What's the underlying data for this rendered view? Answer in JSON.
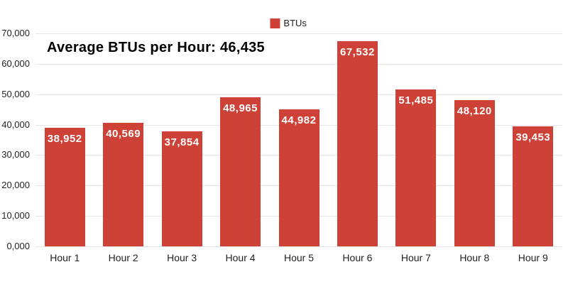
{
  "chart_data": {
    "type": "bar",
    "title": "Average BTUs per Hour: 46,435",
    "legend": [
      "BTUs"
    ],
    "legend_position": "top-center",
    "categories": [
      "Hour 1",
      "Hour 2",
      "Hour 3",
      "Hour 4",
      "Hour 5",
      "Hour 6",
      "Hour 7",
      "Hour 8",
      "Hour 9"
    ],
    "series": [
      {
        "name": "BTUs",
        "values": [
          38952,
          40569,
          37854,
          48965,
          44982,
          67532,
          51485,
          48120,
          39453
        ],
        "value_labels": [
          "38,952",
          "40,569",
          "37,854",
          "48,965",
          "44,982",
          "67,532",
          "51,485",
          "48,120",
          "39,453"
        ]
      }
    ],
    "average_value": 46435,
    "xlabel": "",
    "ylabel": "",
    "ylim": [
      0,
      70000
    ],
    "ytick_step": 10000,
    "ytick_labels": [
      "0,000",
      "10,000",
      "20,000",
      "30,000",
      "40,000",
      "50,000",
      "60,000",
      "70,000"
    ],
    "grid": "horizontal",
    "colors": {
      "bar": "#ce4137",
      "grid": "#e6e6e6",
      "axis_text": "#222222",
      "title_text": "#000000",
      "value_label": "#ffffff"
    }
  }
}
